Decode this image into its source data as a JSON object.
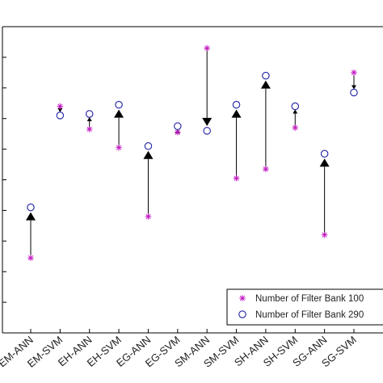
{
  "chart_data": {
    "type": "scatter",
    "categories": [
      "EM-ANN",
      "EM-SVM",
      "EH-ANN",
      "EH-SVM",
      "EG-ANN",
      "EG-SVM",
      "SM-ANN",
      "SM-SVM",
      "SH-ANN",
      "SH-SVM",
      "SG-ANN",
      "SG-SVM"
    ],
    "ylim": [
      0,
      10
    ],
    "series": [
      {
        "name": "Number of Filter Bank 100",
        "marker": "asterisk",
        "color": "#c41bc4",
        "values": [
          2.45,
          7.4,
          6.65,
          6.05,
          3.8,
          6.55,
          9.3,
          5.05,
          5.35,
          6.7,
          3.2,
          8.5
        ]
      },
      {
        "name": "Number of Filter Bank 290",
        "marker": "circle",
        "color": "#1f1fa6",
        "values": [
          4.1,
          7.1,
          7.15,
          7.45,
          6.1,
          6.75,
          6.6,
          7.45,
          8.4,
          7.4,
          5.85,
          7.85
        ]
      }
    ],
    "grid": false,
    "legend_position": "bottom-right"
  }
}
